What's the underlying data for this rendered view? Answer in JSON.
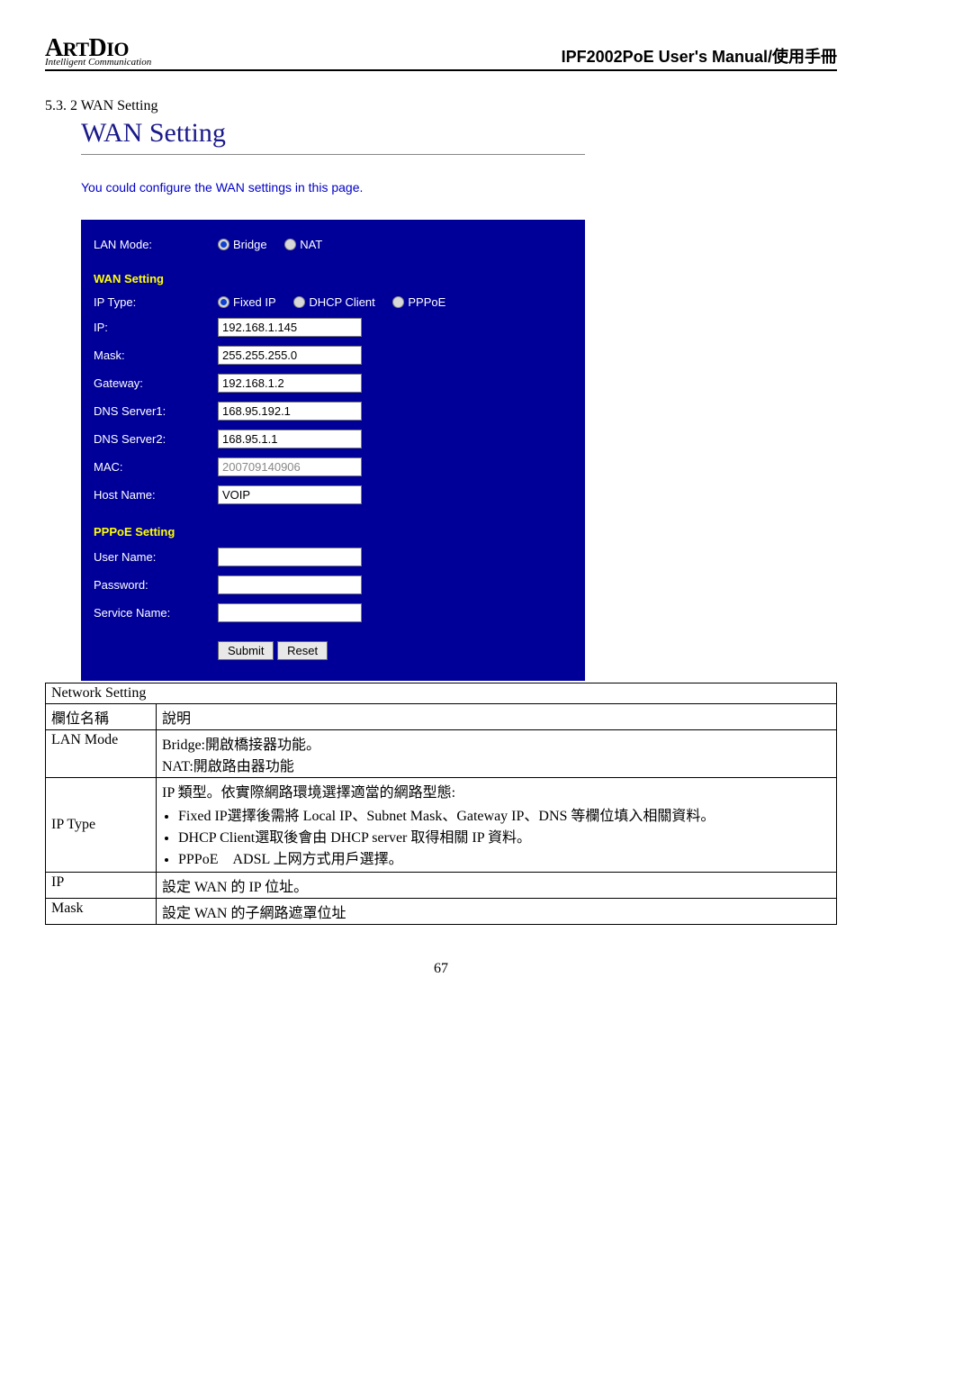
{
  "header": {
    "logo_main": "ArtDio",
    "logo_tag": "Intelligent Communication",
    "manual_title": "IPF2002PoE User's Manual/使用手冊"
  },
  "section_heading": "5.3. 2 WAN Setting",
  "panel": {
    "title": "WAN Setting",
    "desc": "You could configure the WAN settings in this page.",
    "lan_mode_label": "LAN Mode:",
    "lan_mode_options": {
      "bridge": "Bridge",
      "nat": "NAT"
    },
    "lan_mode_selected": "bridge",
    "wan_section": "WAN Setting",
    "ip_type_label": "IP Type:",
    "ip_type_options": {
      "fixed": "Fixed IP",
      "dhcp": "DHCP Client",
      "pppoe": "PPPoE"
    },
    "ip_type_selected": "fixed",
    "fields": {
      "ip": {
        "label": "IP:",
        "value": "192.168.1.145"
      },
      "mask": {
        "label": "Mask:",
        "value": "255.255.255.0"
      },
      "gateway": {
        "label": "Gateway:",
        "value": "192.168.1.2"
      },
      "dns1": {
        "label": "DNS Server1:",
        "value": "168.95.192.1"
      },
      "dns2": {
        "label": "DNS Server2:",
        "value": "168.95.1.1"
      },
      "mac": {
        "label": "MAC:",
        "value": "200709140906",
        "disabled": true
      },
      "host": {
        "label": "Host Name:",
        "value": "VOIP"
      }
    },
    "pppoe_section": "PPPoE Setting",
    "pppoe": {
      "user": {
        "label": "User Name:",
        "value": ""
      },
      "pass": {
        "label": "Password:",
        "value": ""
      },
      "service": {
        "label": "Service Name:",
        "value": ""
      }
    },
    "buttons": {
      "submit": "Submit",
      "reset": "Reset"
    }
  },
  "table": {
    "caption": "Network Setting",
    "head_col1": "欄位名稱",
    "head_col2": "說明",
    "rows": {
      "lan_mode": {
        "name": "LAN Mode",
        "line1": "Bridge:開啟橋接器功能。",
        "line2": "NAT:開啟路由器功能"
      },
      "ip_type": {
        "name": "IP Type",
        "intro": "IP 類型。依實際網路環境選擇適當的網路型態:",
        "b1": "Fixed IP選擇後需將 Local IP、Subnet Mask、Gateway IP、DNS 等欄位填入相關資料。",
        "b2": "DHCP Client選取後會由 DHCP server 取得相關 IP 資料。",
        "b3": "PPPoE　ADSL 上网方式用戶選擇。"
      },
      "ip": {
        "name": "IP",
        "desc": "設定 WAN 的 IP 位址。"
      },
      "mask": {
        "name": "Mask",
        "desc": "設定 WAN 的子網路遮罩位址"
      }
    }
  },
  "page_number": "67"
}
